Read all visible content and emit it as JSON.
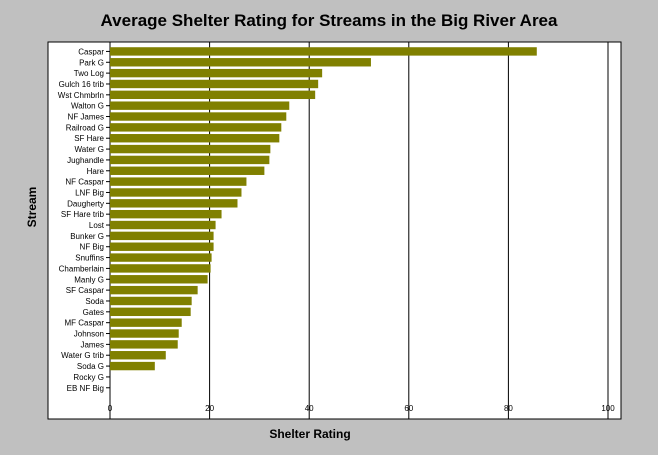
{
  "chart_data": {
    "type": "bar",
    "orientation": "horizontal",
    "title": "Average Shelter Rating for Streams in the Big River Area",
    "xlabel": "Shelter Rating",
    "ylabel": "Stream",
    "xlim": [
      0,
      100
    ],
    "xticks": [
      0,
      20,
      40,
      60,
      80,
      100
    ],
    "grid": "vertical",
    "bar_color": "#808000",
    "categories": [
      "Caspar",
      "Park G",
      "Two Log",
      "Gulch 16 trib",
      "Wst Chmbrln",
      "Walton G",
      "NF James",
      "Railroad G",
      "SF Hare",
      "Water G",
      "Jughandle",
      "Hare",
      "NF Caspar",
      "LNF Big",
      "Daugherty",
      "SF Hare trib",
      "Lost",
      "Bunker G",
      "NF Big",
      "Snuffins",
      "Chamberlain",
      "Manly G",
      "SF Caspar",
      "Soda",
      "Gates",
      "MF Caspar",
      "Johnson",
      "James",
      "Water G trib",
      "Soda G",
      "Rocky G",
      "EB NF Big"
    ],
    "values": [
      85.7,
      52.4,
      42.6,
      41.8,
      41.2,
      36.0,
      35.4,
      34.4,
      34.0,
      32.2,
      32.0,
      31.0,
      27.4,
      26.4,
      25.6,
      22.4,
      21.2,
      20.8,
      20.8,
      20.4,
      20.2,
      19.6,
      17.6,
      16.4,
      16.2,
      14.4,
      13.8,
      13.6,
      11.2,
      9.0,
      0,
      0
    ]
  }
}
